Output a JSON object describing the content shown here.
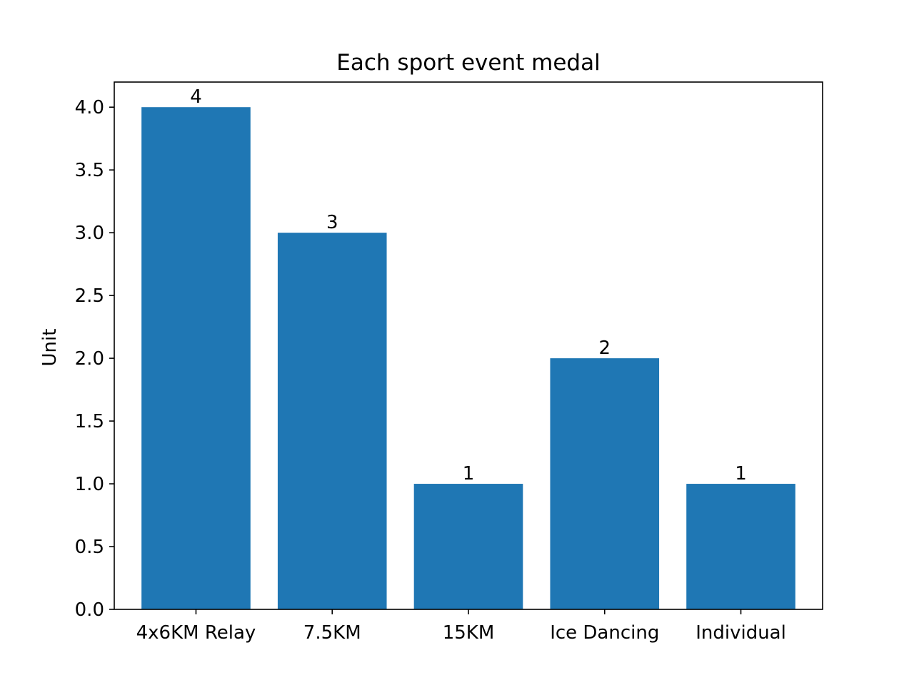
{
  "chart_data": {
    "type": "bar",
    "title": "Each sport event medal",
    "xlabel": "",
    "ylabel": "Unit",
    "categories": [
      "4x6KM Relay",
      "7.5KM",
      "15KM",
      "Ice Dancing",
      "Individual"
    ],
    "values": [
      4,
      3,
      1,
      2,
      1
    ],
    "data_labels": [
      "4",
      "3",
      "1",
      "2",
      "1"
    ],
    "ylim": [
      0,
      4.2
    ],
    "yticks": [
      0.0,
      0.5,
      1.0,
      1.5,
      2.0,
      2.5,
      3.0,
      3.5,
      4.0
    ],
    "ytick_labels": [
      "0.0",
      "0.5",
      "1.0",
      "1.5",
      "2.0",
      "2.5",
      "3.0",
      "3.5",
      "4.0"
    ],
    "grid": false,
    "legend": "none",
    "colors": {
      "bar": "#1f77b4",
      "axis": "#000000",
      "background": "#ffffff"
    }
  }
}
